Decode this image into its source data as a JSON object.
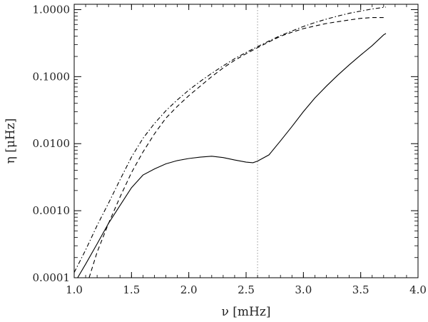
{
  "chart_data": {
    "type": "line",
    "xlabel": "ν [mHz]",
    "ylabel": "η [μHz]",
    "xlim": [
      1.0,
      4.0
    ],
    "ylim": [
      0.0001,
      1.2
    ],
    "yscale": "log",
    "grid": false,
    "x_ticks": [
      1.0,
      1.5,
      2.0,
      2.5,
      3.0,
      3.5,
      4.0
    ],
    "x_tick_labels": [
      "1.0",
      "1.5",
      "2.0",
      "2.5",
      "3.0",
      "3.5",
      "4.0"
    ],
    "y_ticks": [
      0.0001,
      0.001,
      0.01,
      0.1,
      1.0
    ],
    "y_tick_labels": [
      "0.0001",
      "0.0010",
      "0.0100",
      "0.1000",
      "1.0000"
    ],
    "reference_line": {
      "x": 2.6,
      "style": "dotted",
      "color": "#999999"
    },
    "series": [
      {
        "style": "solid",
        "color": "#000000",
        "points": [
          [
            1.03,
            0.0001
          ],
          [
            1.1,
            0.00016
          ],
          [
            1.2,
            0.00032
          ],
          [
            1.3,
            0.00065
          ],
          [
            1.4,
            0.0012
          ],
          [
            1.5,
            0.0022
          ],
          [
            1.6,
            0.0034
          ],
          [
            1.7,
            0.0042
          ],
          [
            1.8,
            0.005
          ],
          [
            1.9,
            0.0056
          ],
          [
            2.0,
            0.006
          ],
          [
            2.1,
            0.0063
          ],
          [
            2.2,
            0.0065
          ],
          [
            2.3,
            0.0062
          ],
          [
            2.4,
            0.0057
          ],
          [
            2.5,
            0.0053
          ],
          [
            2.56,
            0.0052
          ],
          [
            2.6,
            0.0055
          ],
          [
            2.7,
            0.0068
          ],
          [
            2.8,
            0.011
          ],
          [
            2.9,
            0.018
          ],
          [
            3.0,
            0.03
          ],
          [
            3.1,
            0.048
          ],
          [
            3.2,
            0.072
          ],
          [
            3.3,
            0.105
          ],
          [
            3.4,
            0.15
          ],
          [
            3.5,
            0.21
          ],
          [
            3.6,
            0.29
          ],
          [
            3.7,
            0.42
          ],
          [
            3.72,
            0.44
          ]
        ]
      },
      {
        "style": "dashed",
        "color": "#000000",
        "points": [
          [
            1.13,
            0.0001
          ],
          [
            1.2,
            0.00024
          ],
          [
            1.3,
            0.00065
          ],
          [
            1.4,
            0.0016
          ],
          [
            1.5,
            0.0037
          ],
          [
            1.6,
            0.0075
          ],
          [
            1.7,
            0.014
          ],
          [
            1.8,
            0.024
          ],
          [
            1.9,
            0.036
          ],
          [
            2.0,
            0.052
          ],
          [
            2.1,
            0.072
          ],
          [
            2.2,
            0.1
          ],
          [
            2.3,
            0.135
          ],
          [
            2.4,
            0.175
          ],
          [
            2.5,
            0.22
          ],
          [
            2.6,
            0.27
          ],
          [
            2.7,
            0.33
          ],
          [
            2.8,
            0.4
          ],
          [
            2.9,
            0.46
          ],
          [
            3.0,
            0.52
          ],
          [
            3.1,
            0.57
          ],
          [
            3.2,
            0.62
          ],
          [
            3.3,
            0.66
          ],
          [
            3.4,
            0.7
          ],
          [
            3.5,
            0.74
          ],
          [
            3.6,
            0.76
          ],
          [
            3.7,
            0.76
          ]
        ]
      },
      {
        "style": "dash-dot",
        "color": "#000000",
        "points": [
          [
            1.0,
            0.00012
          ],
          [
            1.1,
            0.00026
          ],
          [
            1.2,
            0.0006
          ],
          [
            1.3,
            0.0013
          ],
          [
            1.4,
            0.0029
          ],
          [
            1.5,
            0.0063
          ],
          [
            1.6,
            0.012
          ],
          [
            1.7,
            0.02
          ],
          [
            1.8,
            0.031
          ],
          [
            1.9,
            0.045
          ],
          [
            2.0,
            0.063
          ],
          [
            2.1,
            0.085
          ],
          [
            2.2,
            0.112
          ],
          [
            2.3,
            0.145
          ],
          [
            2.4,
            0.185
          ],
          [
            2.5,
            0.23
          ],
          [
            2.6,
            0.28
          ],
          [
            2.7,
            0.34
          ],
          [
            2.8,
            0.41
          ],
          [
            2.9,
            0.48
          ],
          [
            3.0,
            0.56
          ],
          [
            3.1,
            0.64
          ],
          [
            3.2,
            0.72
          ],
          [
            3.3,
            0.8
          ],
          [
            3.4,
            0.88
          ],
          [
            3.5,
            0.95
          ],
          [
            3.6,
            1.02
          ],
          [
            3.7,
            1.08
          ],
          [
            3.72,
            1.09
          ]
        ]
      }
    ]
  }
}
